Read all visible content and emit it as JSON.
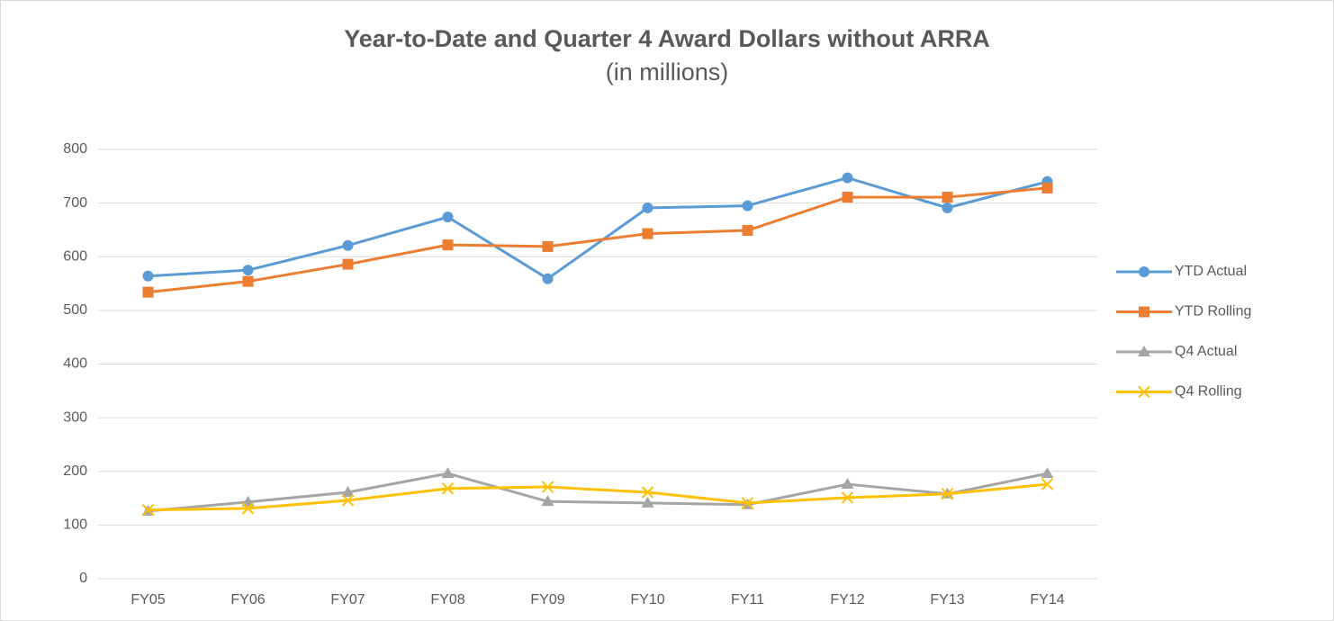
{
  "chart_data": {
    "type": "line",
    "title": "Year-to-Date and Quarter 4 Award Dollars without ARRA",
    "subtitle": "(in millions)",
    "categories": [
      "FY05",
      "FY06",
      "FY07",
      "FY08",
      "FY09",
      "FY10",
      "FY11",
      "FY12",
      "FY13",
      "FY14"
    ],
    "series": [
      {
        "name": "YTD Actual",
        "color": "#5b9bd5",
        "marker": "circle",
        "values": [
          564,
          575,
          621,
          674,
          559,
          691,
          695,
          747,
          691,
          740
        ]
      },
      {
        "name": "YTD Rolling",
        "color": "#ed7d31",
        "marker": "square",
        "values": [
          534,
          554,
          586,
          622,
          619,
          643,
          649,
          711,
          711,
          728
        ]
      },
      {
        "name": "Q4 Actual",
        "color": "#a5a5a5",
        "marker": "triangle",
        "values": [
          126,
          143,
          161,
          196,
          144,
          141,
          138,
          176,
          158,
          196
        ]
      },
      {
        "name": "Q4 Rolling",
        "color": "#ffc000",
        "marker": "x",
        "values": [
          128,
          131,
          146,
          168,
          171,
          161,
          141,
          151,
          158,
          176
        ]
      }
    ],
    "ylim": [
      0,
      800
    ],
    "yticks": [
      0,
      100,
      200,
      300,
      400,
      500,
      600,
      700,
      800
    ],
    "grid": true,
    "legend": "right"
  }
}
